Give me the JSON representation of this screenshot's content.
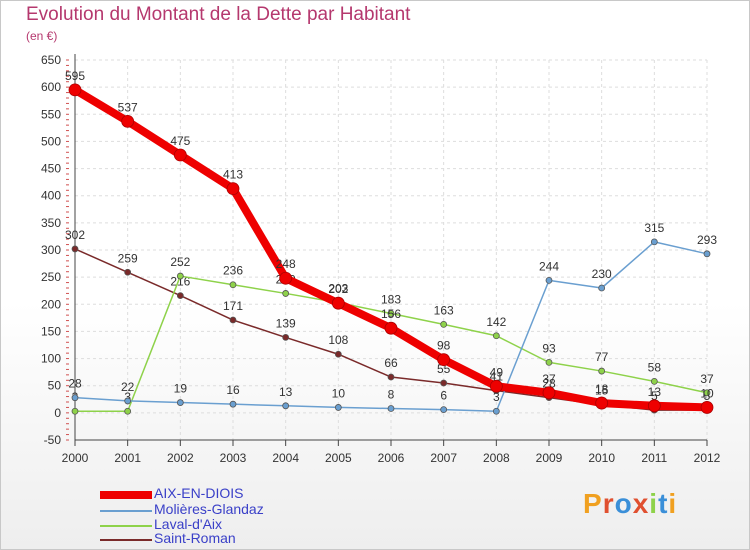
{
  "title": "Evolution du Montant de la Dette par Habitant",
  "unit": "(en €)",
  "logo": "Proxiti",
  "chart_data": {
    "type": "line",
    "title": "Evolution du Montant de la Dette par Habitant",
    "ylabel": "(en €)",
    "x": [
      "2000",
      "2001",
      "2002",
      "2003",
      "2004",
      "2005",
      "2006",
      "2007",
      "2008",
      "2009",
      "2010",
      "2011",
      "2012"
    ],
    "ylim": [
      -50,
      650
    ],
    "yticks": [
      -50,
      0,
      50,
      100,
      150,
      200,
      250,
      300,
      350,
      400,
      450,
      500,
      550,
      600,
      650
    ],
    "grid": true,
    "legend_position": "bottom-left",
    "series": [
      {
        "name": "AIX-EN-DIOIS",
        "color": "#ee0000",
        "values": [
          595,
          537,
          475,
          413,
          248,
          202,
          156,
          98,
          49,
          37,
          18,
          13,
          10
        ]
      },
      {
        "name": "Molières-Glandaz",
        "color": "#6a9fd0",
        "values": [
          28,
          22,
          19,
          16,
          13,
          10,
          8,
          6,
          3,
          244,
          230,
          315,
          293
        ]
      },
      {
        "name": "Laval-d'Aix",
        "color": "#8ed24a",
        "values": [
          3,
          3,
          252,
          236,
          220,
          203,
          183,
          163,
          142,
          93,
          77,
          58,
          37
        ]
      },
      {
        "name": "Saint-Roman",
        "color": "#7a2a2a",
        "values": [
          302,
          259,
          216,
          171,
          139,
          108,
          66,
          55,
          41,
          28,
          15,
          5,
          5
        ]
      }
    ]
  }
}
